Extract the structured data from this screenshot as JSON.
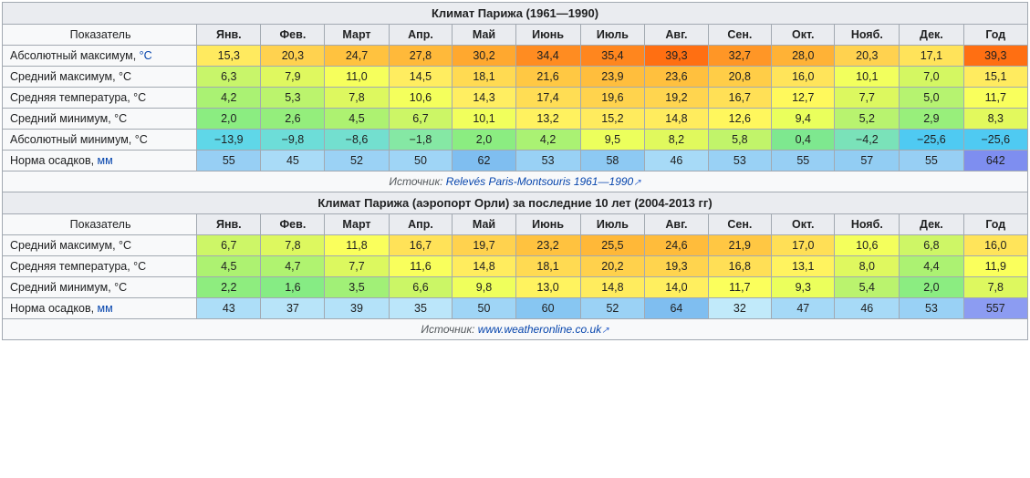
{
  "table1_title": "Климат Парижа (1961—1990)",
  "table2_title": "Климат Парижа (аэропорт Орли) за последние 10 лет (2004-2013 гг)",
  "header_indicator": "Показатель",
  "header_year": "Год",
  "months": [
    "Янв.",
    "Фев.",
    "Март",
    "Апр.",
    "Май",
    "Июнь",
    "Июль",
    "Авг.",
    "Сен.",
    "Окт.",
    "Нояб.",
    "Дек."
  ],
  "unit_temp_link": "°C",
  "unit_temp_plain": "°C",
  "unit_mm": "мм",
  "rows1": {
    "abs_max": {
      "label": "Абсолютный максимум, ",
      "unit": "link",
      "values": [
        "15,3",
        "20,3",
        "24,7",
        "27,8",
        "30,2",
        "34,4",
        "35,4",
        "39,3",
        "32,7",
        "28,0",
        "20,3",
        "17,1"
      ],
      "year": "39,3",
      "colors": [
        "#ffea5f",
        "#ffd24f",
        "#ffc23f",
        "#ffb93a",
        "#ffa82f",
        "#ff8c21",
        "#ff861e",
        "#ff6f12",
        "#ff9626",
        "#ffb236",
        "#ffd24f",
        "#ffe35a"
      ],
      "ycolor": "#ff6f12"
    },
    "avg_max": {
      "label": "Средний максимум, ",
      "unit": "plain",
      "values": [
        "6,3",
        "7,9",
        "11,0",
        "14,5",
        "18,1",
        "21,6",
        "23,9",
        "23,6",
        "20,8",
        "16,0",
        "10,1",
        "7,0"
      ],
      "year": "15,1",
      "colors": [
        "#c8f56a",
        "#dff85f",
        "#f6ff5c",
        "#ffed60",
        "#ffda52",
        "#ffc843",
        "#ffbe3d",
        "#ffc03e",
        "#ffcd47",
        "#ffe45a",
        "#f2ff5d",
        "#d4f762"
      ],
      "ycolor": "#ffeb5f"
    },
    "avg_temp": {
      "label": "Средняя температура, ",
      "unit": "plain",
      "values": [
        "4,2",
        "5,3",
        "7,8",
        "10,6",
        "14,3",
        "17,4",
        "19,6",
        "19,2",
        "16,7",
        "12,7",
        "7,7",
        "5,0"
      ],
      "year": "11,7",
      "colors": [
        "#aaf273",
        "#bbf46d",
        "#ddf85f",
        "#f4ff5c",
        "#ffee61",
        "#ffdd54",
        "#ffd34d",
        "#ffd54f",
        "#ffe056",
        "#fff95c",
        "#dcf85f",
        "#b6f370"
      ],
      "ycolor": "#f9ff5c"
    },
    "avg_min": {
      "label": "Средний минимум, ",
      "unit": "plain",
      "values": [
        "2,0",
        "2,6",
        "4,5",
        "6,7",
        "10,1",
        "13,2",
        "15,2",
        "14,8",
        "12,6",
        "9,4",
        "5,2",
        "2,9"
      ],
      "year": "8,3",
      "colors": [
        "#8bed81",
        "#94ee7c",
        "#adf271",
        "#ccf666",
        "#f1ff5c",
        "#fff25f",
        "#ffeb5e",
        "#ffec5e",
        "#fff75d",
        "#eaff5c",
        "#b8f36f",
        "#98ef7b"
      ],
      "ycolor": "#e2f95d"
    },
    "abs_min": {
      "label": "Абсолютный минимум, ",
      "unit": "plain",
      "values": [
        "−13,9",
        "−9,8",
        "−8,6",
        "−1,8",
        "2,0",
        "4,2",
        "9,5",
        "8,2",
        "5,8",
        "0,4",
        "−4,2",
        "−25,6"
      ],
      "year": "−25,6",
      "colors": [
        "#5fd7e8",
        "#6dddd8",
        "#73dfcf",
        "#85e8a4",
        "#8bed81",
        "#aaf273",
        "#ecff5c",
        "#e0f95d",
        "#c1f46a",
        "#7ee88f",
        "#7ae2b9",
        "#4fcaf2"
      ],
      "ycolor": "#4fcaf2"
    },
    "precip": {
      "label": "Норма осадков, ",
      "unit": "mm",
      "values": [
        "55",
        "45",
        "52",
        "50",
        "62",
        "53",
        "58",
        "46",
        "53",
        "55",
        "57",
        "55"
      ],
      "year": "642",
      "colors": [
        "#97cff4",
        "#a9dbf7",
        "#9bd2f5",
        "#9fd5f6",
        "#7fbef0",
        "#99d1f5",
        "#8dc9f3",
        "#a7daf7",
        "#99d1f5",
        "#97cff4",
        "#92cdf3",
        "#97cff4"
      ],
      "ycolor": "#7e8ef0"
    }
  },
  "source1_prefix": "Источник: ",
  "source1_link": "Relevés Paris-Montsouris 1961—1990",
  "rows2": {
    "avg_max": {
      "label": "Средний максимум, ",
      "unit": "plain",
      "values": [
        "6,7",
        "7,8",
        "11,8",
        "16,7",
        "19,7",
        "23,2",
        "25,5",
        "24,6",
        "21,9",
        "17,0",
        "10,6",
        "6,8"
      ],
      "year": "16,0",
      "colors": [
        "#cdf667",
        "#ddf85f",
        "#faff5c",
        "#ffe258",
        "#ffd24e",
        "#ffc23f",
        "#ffb838",
        "#ffbc3b",
        "#ffc743",
        "#ffdf56",
        "#f4ff5c",
        "#cef666"
      ],
      "ycolor": "#ffe45a"
    },
    "avg_temp": {
      "label": "Средняя температура, ",
      "unit": "plain",
      "values": [
        "4,5",
        "4,7",
        "7,7",
        "11,6",
        "14,8",
        "18,1",
        "20,2",
        "19,3",
        "16,8",
        "13,1",
        "8,0",
        "4,4"
      ],
      "year": "11,9",
      "colors": [
        "#adf271",
        "#b0f370",
        "#dcf85f",
        "#f9ff5c",
        "#ffec5e",
        "#ffda52",
        "#ffd14c",
        "#ffd44e",
        "#ffdf56",
        "#fff35f",
        "#dff85f",
        "#acf272"
      ],
      "ycolor": "#faff5c"
    },
    "avg_min": {
      "label": "Средний минимум, ",
      "unit": "plain",
      "values": [
        "2,2",
        "1,6",
        "3,5",
        "6,6",
        "9,8",
        "13,0",
        "14,8",
        "14,0",
        "11,7",
        "9,3",
        "5,4",
        "2,0"
      ],
      "year": "7,8",
      "colors": [
        "#8eed7f",
        "#86ec84",
        "#a1f077",
        "#cbf666",
        "#efff5c",
        "#fff35f",
        "#ffec5e",
        "#ffef5f",
        "#fbff5c",
        "#ebff5c",
        "#baf36e",
        "#8bed81"
      ],
      "ycolor": "#ddf85f"
    },
    "precip": {
      "label": "Норма осадков, ",
      "unit": "mm",
      "values": [
        "43",
        "37",
        "39",
        "35",
        "50",
        "60",
        "52",
        "64",
        "32",
        "47",
        "46",
        "53"
      ],
      "year": "557",
      "colors": [
        "#addef8",
        "#b8e4f9",
        "#b4e2f9",
        "#bbe6fa",
        "#9fd5f6",
        "#87c6f2",
        "#9bd2f5",
        "#7fbef0",
        "#c1eafa",
        "#a5d9f7",
        "#a7daf7",
        "#99d1f5"
      ],
      "ycolor": "#8c9cf2"
    }
  },
  "source2_prefix": "Источник: ",
  "source2_link": "www.weatheronline.co.uk"
}
